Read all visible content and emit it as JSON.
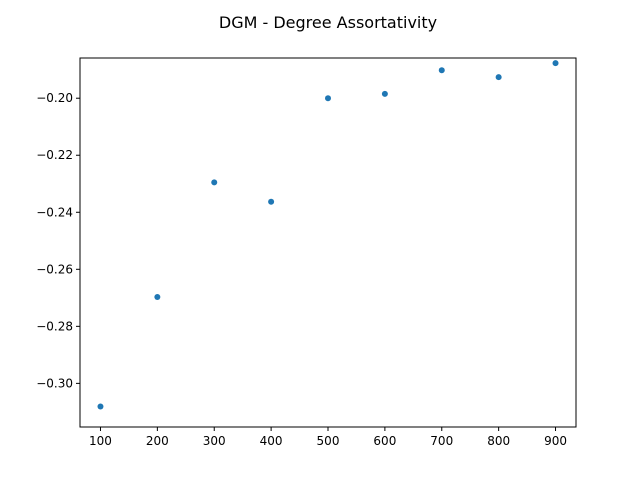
{
  "chart_data": {
    "type": "scatter",
    "title": "DGM - Degree Assortativity",
    "xlabel": "",
    "ylabel": "",
    "x": [
      100,
      200,
      300,
      400,
      500,
      600,
      700,
      800,
      900
    ],
    "y": [
      -0.3081,
      -0.2697,
      -0.2295,
      -0.2363,
      -0.2,
      -0.1985,
      -0.1902,
      -0.1926,
      -0.1877
    ],
    "xlim": [
      64,
      936
    ],
    "ylim": [
      -0.3153,
      -0.1859
    ],
    "xticks": [
      100,
      200,
      300,
      400,
      500,
      600,
      700,
      800,
      900
    ],
    "yticks": [
      -0.3,
      -0.28,
      -0.26,
      -0.24,
      -0.22,
      -0.2
    ],
    "ytick_labels": [
      "−0.30",
      "−0.28",
      "−0.26",
      "−0.24",
      "−0.22",
      "−0.20"
    ],
    "grid": false,
    "marker_color": "#1f77b4"
  }
}
